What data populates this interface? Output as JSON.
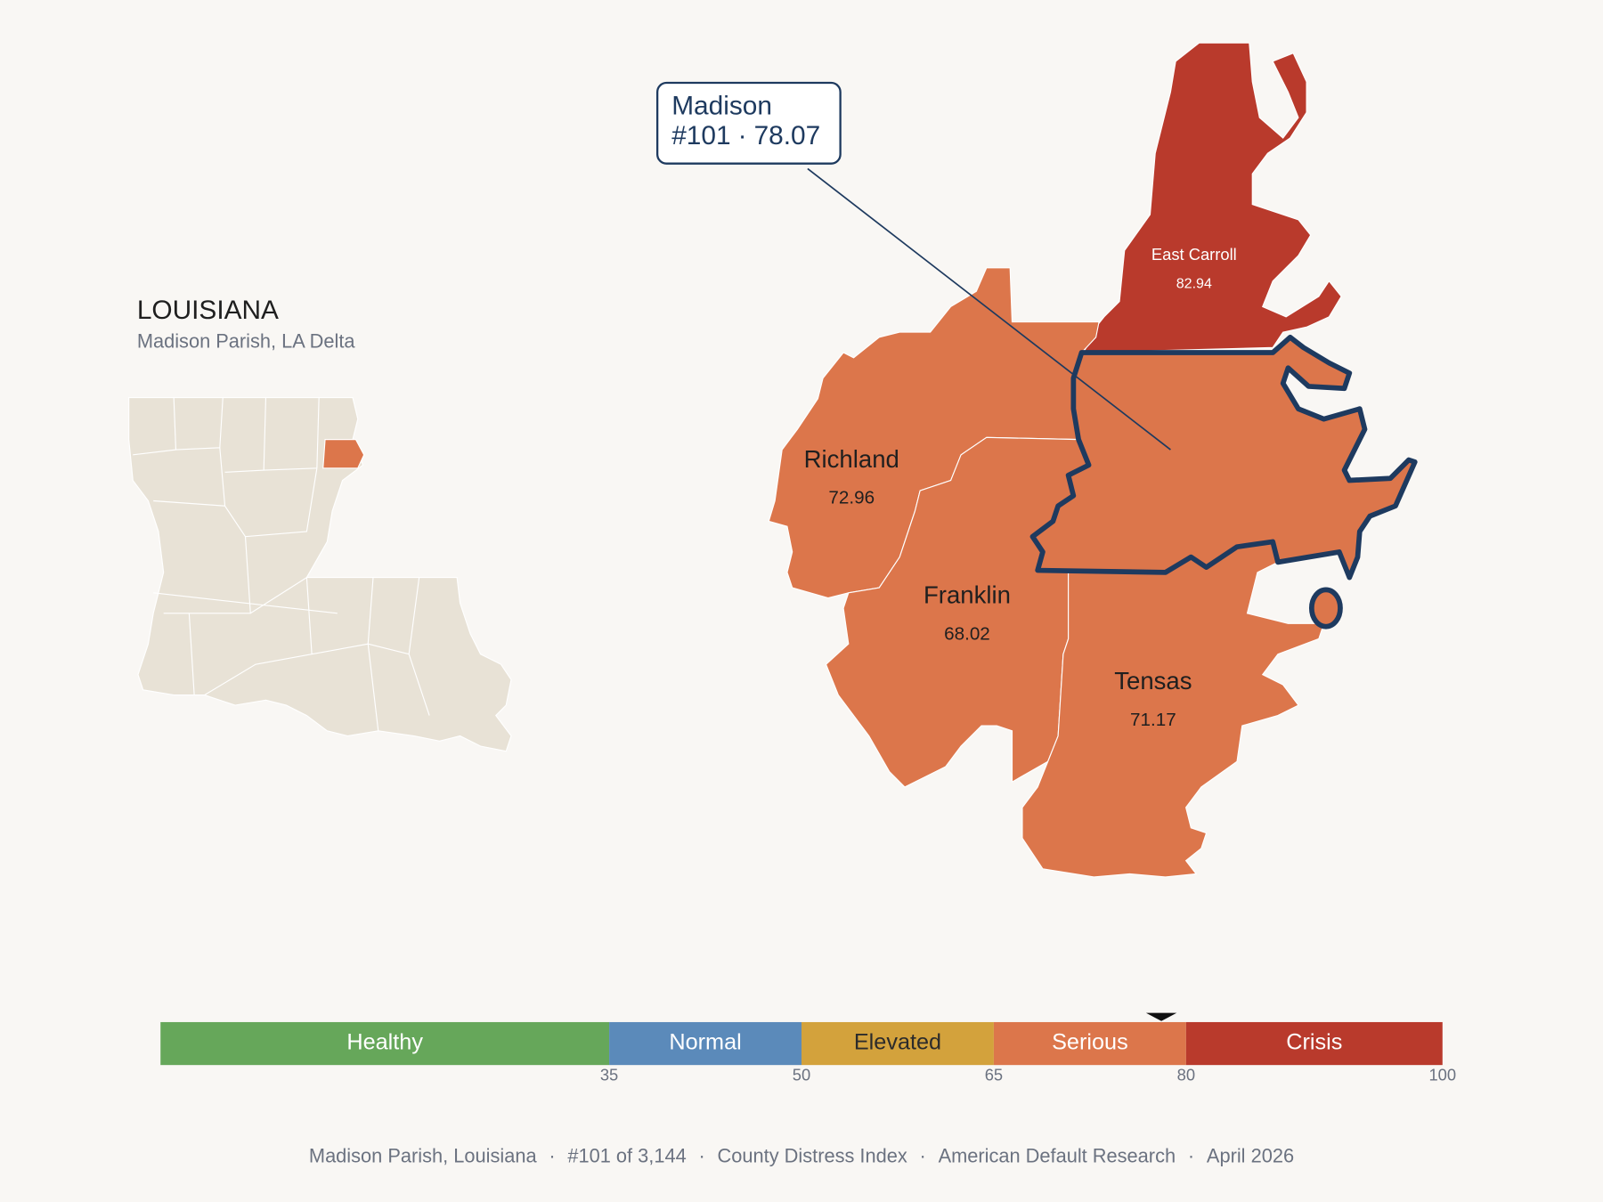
{
  "header": {
    "title": "LOUISIANA",
    "subtitle": "Madison Parish, LA Delta"
  },
  "callout": {
    "name": "Madison",
    "rank": "#101",
    "score": 78.07
  },
  "parishes": [
    {
      "name": "East Carroll",
      "value": 82.94
    },
    {
      "name": "Richland",
      "value": 72.96
    },
    {
      "name": "Franklin",
      "value": 68.02
    },
    {
      "name": "Tensas",
      "value": 71.17
    }
  ],
  "legend": {
    "range": [
      0,
      100
    ],
    "bands": [
      {
        "label": "Healthy",
        "color": "#66a75a"
      },
      {
        "label": "Normal",
        "color": "#5b8aba"
      },
      {
        "label": "Elevated",
        "color": "#d3a23c"
      },
      {
        "label": "Serious",
        "color": "#dc764b"
      },
      {
        "label": "Crisis",
        "color": "#b93a2c"
      }
    ],
    "ticks": [
      35,
      50,
      65,
      80,
      100
    ]
  },
  "separator": "·",
  "footer": [
    "Madison Parish, Louisiana",
    "#101 of 3,144",
    "County Distress Index",
    "American Default Research",
    "April 2026"
  ]
}
